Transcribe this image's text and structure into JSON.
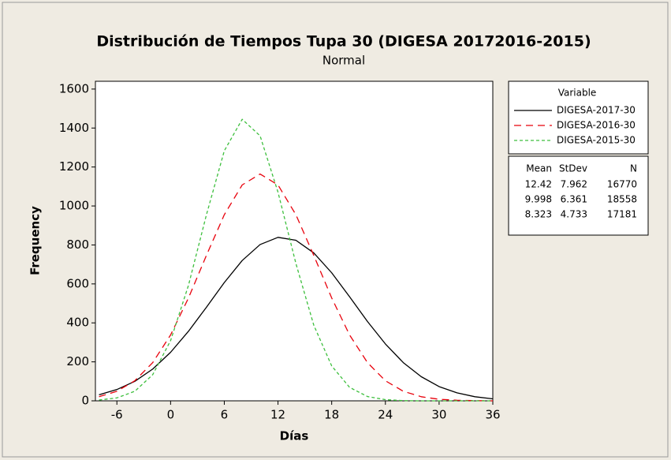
{
  "chart_data": {
    "type": "line",
    "title": "Distribución de Tiempos Tupa 30 (DIGESA 20172016-2015)",
    "subtitle": "Normal",
    "x_label": "Días",
    "y_label": "Frequency",
    "x": [
      -8,
      -6,
      -4,
      -2,
      0,
      2,
      4,
      6,
      8,
      10,
      12,
      14,
      16,
      18,
      20,
      22,
      24,
      26,
      28,
      30,
      32,
      34,
      36
    ],
    "series": [
      {
        "name": "DIGESA-2017-30",
        "color": "#000000",
        "dash": "none",
        "values": [
          31,
          58,
          100,
          163,
          249,
          357,
          480,
          607,
          720,
          802,
          839,
          824,
          759,
          657,
          534,
          407,
          292,
          196,
          124,
          73,
          41,
          21,
          10
        ]
      },
      {
        "name": "DIGESA-2016-30",
        "color": "#e8000b",
        "dash": "9,6",
        "values": [
          21,
          49,
          103,
          196,
          338,
          528,
          746,
          955,
          1108,
          1164,
          1108,
          955,
          746,
          528,
          338,
          196,
          103,
          49,
          21,
          8,
          3,
          1,
          0
        ]
      },
      {
        "name": "DIGESA-2015-30",
        "color": "#3dbf3d",
        "dash": "4,3",
        "values": [
          4,
          15,
          49,
          134,
          309,
          593,
          954,
          1283,
          1445,
          1360,
          1071,
          705,
          388,
          179,
          69,
          22,
          6,
          1,
          0,
          0,
          0,
          0,
          0
        ]
      }
    ],
    "legend_title": "Variable",
    "stats": {
      "header": [
        "Mean",
        "StDev",
        "N"
      ],
      "rows": [
        [
          "12.42",
          "7.962",
          "16770"
        ],
        [
          "9.998",
          "6.361",
          "18558"
        ],
        [
          "8.323",
          "4.733",
          "17181"
        ]
      ]
    },
    "xlim": [
      -8.4,
      36
    ],
    "xticks": [
      -6,
      0,
      6,
      12,
      18,
      24,
      30,
      36
    ],
    "ylim": [
      0,
      1640
    ],
    "yticks": [
      0,
      200,
      400,
      600,
      800,
      1000,
      1200,
      1400,
      1600
    ],
    "grid": false
  }
}
